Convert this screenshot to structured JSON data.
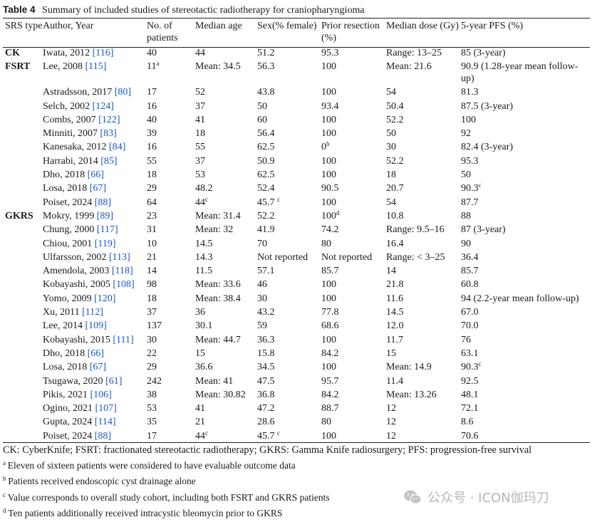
{
  "table": {
    "label": "Table 4",
    "title": "Summary of included studies of stereotactic radiotherapy for craniopharyngioma",
    "headers": [
      "SRS type",
      "Author, Year",
      "No. of patients",
      "Median age",
      "Sex(% female)",
      "Prior resec­tion (%)",
      "Median dose (Gy)",
      "5-year PFS (%)"
    ],
    "rows": [
      {
        "type": "CK",
        "author": "Iwata, 2012",
        "ref": "[116]",
        "n": "40",
        "nsup": "",
        "age": "44",
        "agesup": "",
        "sex": "51.2",
        "sexsup": "",
        "prior": "95.3",
        "priorsup": "",
        "dose": "Range: 13–25",
        "pfs": "85 (3-year)",
        "pfssup": ""
      },
      {
        "type": "FSRT",
        "author": "Lee, 2008",
        "ref": "[115]",
        "n": "11",
        "nsup": "a",
        "age": "Mean: 34.5",
        "agesup": "",
        "sex": "56.3",
        "sexsup": "",
        "prior": "100",
        "priorsup": "",
        "dose": "Mean: 21.6",
        "pfs": "90.9 (1.28-year mean follow-up)",
        "pfssup": ""
      },
      {
        "type": "",
        "author": "Astradsson, 2017",
        "ref": "[80]",
        "n": "17",
        "nsup": "",
        "age": "52",
        "agesup": "",
        "sex": "43.8",
        "sexsup": "",
        "prior": "100",
        "priorsup": "",
        "dose": "54",
        "pfs": "81.3",
        "pfssup": ""
      },
      {
        "type": "",
        "author": "Selch, 2002",
        "ref": "[124]",
        "n": "16",
        "nsup": "",
        "age": "37",
        "agesup": "",
        "sex": "50",
        "sexsup": "",
        "prior": "93.4",
        "priorsup": "",
        "dose": "50.4",
        "pfs": "87.5 (3-year)",
        "pfssup": ""
      },
      {
        "type": "",
        "author": "Combs, 2007",
        "ref": "[122]",
        "n": "40",
        "nsup": "",
        "age": "41",
        "agesup": "",
        "sex": "60",
        "sexsup": "",
        "prior": "100",
        "priorsup": "",
        "dose": "52.2",
        "pfs": "100",
        "pfssup": ""
      },
      {
        "type": "",
        "author": "Minniti, 2007",
        "ref": "[83]",
        "n": "39",
        "nsup": "",
        "age": "18",
        "agesup": "",
        "sex": "56.4",
        "sexsup": "",
        "prior": "100",
        "priorsup": "",
        "dose": "50",
        "pfs": "92",
        "pfssup": ""
      },
      {
        "type": "",
        "author": "Kanesaka, 2012",
        "ref": "[84]",
        "n": "16",
        "nsup": "",
        "age": "55",
        "agesup": "",
        "sex": "62.5",
        "sexsup": "",
        "prior": "0",
        "priorsup": "b",
        "dose": "30",
        "pfs": "82.4 (3-year)",
        "pfssup": ""
      },
      {
        "type": "",
        "author": "Harrabi, 2014",
        "ref": "[85]",
        "n": "55",
        "nsup": "",
        "age": "37",
        "agesup": "",
        "sex": "50.9",
        "sexsup": "",
        "prior": "100",
        "priorsup": "",
        "dose": "52.2",
        "pfs": "95.3",
        "pfssup": ""
      },
      {
        "type": "",
        "author": "Dho, 2018",
        "ref": "[66]",
        "n": "18",
        "nsup": "",
        "age": "53",
        "agesup": "",
        "sex": "62.5",
        "sexsup": "",
        "prior": "100",
        "priorsup": "",
        "dose": "18",
        "pfs": "50",
        "pfssup": ""
      },
      {
        "type": "",
        "author": "Losa, 2018",
        "ref": "[67]",
        "n": "29",
        "nsup": "",
        "age": "48.2",
        "agesup": "",
        "sex": "52.4",
        "sexsup": "",
        "prior": "90.5",
        "priorsup": "",
        "dose": "20.7",
        "pfs": "90.3",
        "pfssup": "c"
      },
      {
        "type": "",
        "author": "Poiset, 2024",
        "ref": "[88]",
        "n": "64",
        "nsup": "",
        "age": "44",
        "agesup": "c",
        "sex": "45.7",
        "sexsup": "c",
        "prior": "100",
        "priorsup": "",
        "dose": "54",
        "pfs": "87.7",
        "pfssup": ""
      },
      {
        "type": "GKRS",
        "author": "Mokry, 1999",
        "ref": "[89]",
        "n": "23",
        "nsup": "",
        "age": "Mean: 31.4",
        "agesup": "",
        "sex": "52.2",
        "sexsup": "",
        "prior": "100",
        "priorsup": "d",
        "dose": "10.8",
        "pfs": "88",
        "pfssup": ""
      },
      {
        "type": "",
        "author": "Chung, 2000",
        "ref": "[117]",
        "n": "31",
        "nsup": "",
        "age": "Mean: 32",
        "agesup": "",
        "sex": "41.9",
        "sexsup": "",
        "prior": "74.2",
        "priorsup": "",
        "dose": "Range: 9.5–16",
        "pfs": "87 (3-year)",
        "pfssup": ""
      },
      {
        "type": "",
        "author": "Chiou, 2001",
        "ref": "[119]",
        "n": "10",
        "nsup": "",
        "age": "14.5",
        "agesup": "",
        "sex": "70",
        "sexsup": "",
        "prior": "80",
        "priorsup": "",
        "dose": "16.4",
        "pfs": "90",
        "pfssup": ""
      },
      {
        "type": "",
        "author": "Ulfarsson, 2002",
        "ref": "[113]",
        "n": "21",
        "nsup": "",
        "age": "14.3",
        "agesup": "",
        "sex": "Not reported",
        "sexsup": "",
        "prior": "Not reported",
        "priorsup": "",
        "dose": "Range: < 3–25",
        "pfs": "36.4",
        "pfssup": ""
      },
      {
        "type": "",
        "author": "Amendola, 2003",
        "ref": "[118]",
        "n": "14",
        "nsup": "",
        "age": "11.5",
        "agesup": "",
        "sex": "57.1",
        "sexsup": "",
        "prior": "85.7",
        "priorsup": "",
        "dose": "14",
        "pfs": "85.7",
        "pfssup": ""
      },
      {
        "type": "",
        "author": "Kobayashi, 2005",
        "ref": "[108]",
        "n": "98",
        "nsup": "",
        "age": "Mean: 33.6",
        "agesup": "",
        "sex": "46",
        "sexsup": "",
        "prior": "100",
        "priorsup": "",
        "dose": "21.8",
        "pfs": "60.8",
        "pfssup": ""
      },
      {
        "type": "",
        "author": "Yomo, 2009",
        "ref": "[120]",
        "n": "18",
        "nsup": "",
        "age": "Mean: 38.4",
        "agesup": "",
        "sex": "30",
        "sexsup": "",
        "prior": "100",
        "priorsup": "",
        "dose": "11.6",
        "pfs": "94 (2.2-year mean follow-up)",
        "pfssup": ""
      },
      {
        "type": "",
        "author": "Xu, 2011",
        "ref": "[112]",
        "n": "37",
        "nsup": "",
        "age": "36",
        "agesup": "",
        "sex": "43.2",
        "sexsup": "",
        "prior": "77.8",
        "priorsup": "",
        "dose": "14.5",
        "pfs": "67.0",
        "pfssup": ""
      },
      {
        "type": "",
        "author": "Lee, 2014",
        "ref": "[109]",
        "n": "137",
        "nsup": "",
        "age": "30.1",
        "agesup": "",
        "sex": "59",
        "sexsup": "",
        "prior": "68.6",
        "priorsup": "",
        "dose": "12.0",
        "pfs": "70.0",
        "pfssup": ""
      },
      {
        "type": "",
        "author": "Kobayashi, 2015",
        "ref": "[111]",
        "n": "30",
        "nsup": "",
        "age": "Mean: 44.7",
        "agesup": "",
        "sex": "36.3",
        "sexsup": "",
        "prior": "100",
        "priorsup": "",
        "dose": "11.7",
        "pfs": "76",
        "pfssup": ""
      },
      {
        "type": "",
        "author": "Dho, 2018",
        "ref": "[66]",
        "n": "22",
        "nsup": "",
        "age": "15",
        "agesup": "",
        "sex": "15.8",
        "sexsup": "",
        "prior": "84.2",
        "priorsup": "",
        "dose": "15",
        "pfs": "63.1",
        "pfssup": ""
      },
      {
        "type": "",
        "author": "Losa, 2018",
        "ref": "[67]",
        "n": "29",
        "nsup": "",
        "age": "36.6",
        "agesup": "",
        "sex": "34.5",
        "sexsup": "",
        "prior": "100",
        "priorsup": "",
        "dose": "Mean: 14.9",
        "pfs": "90.3",
        "pfssup": "c"
      },
      {
        "type": "",
        "author": "Tsugawa, 2020",
        "ref": "[61]",
        "n": "242",
        "nsup": "",
        "age": "Mean: 41",
        "agesup": "",
        "sex": "47.5",
        "sexsup": "",
        "prior": "95.7",
        "priorsup": "",
        "dose": "11.4",
        "pfs": "92.5",
        "pfssup": ""
      },
      {
        "type": "",
        "author": "Pikis, 2021",
        "ref": "[106]",
        "n": "38",
        "nsup": "",
        "age": "Mean: 30.82",
        "agesup": "",
        "sex": "36.8",
        "sexsup": "",
        "prior": "84.2",
        "priorsup": "",
        "dose": "Mean: 13.26",
        "pfs": "48.1",
        "pfssup": ""
      },
      {
        "type": "",
        "author": "Ogino, 2021",
        "ref": "[107]",
        "n": "53",
        "nsup": "",
        "age": "41",
        "agesup": "",
        "sex": "47.2",
        "sexsup": "",
        "prior": "88.7",
        "priorsup": "",
        "dose": "12",
        "pfs": "72.1",
        "pfssup": ""
      },
      {
        "type": "",
        "author": "Gupta, 2024",
        "ref": "[114]",
        "n": "35",
        "nsup": "",
        "age": "21",
        "agesup": "",
        "sex": "28.6",
        "sexsup": "",
        "prior": "80",
        "priorsup": "",
        "dose": "12",
        "pfs": "8.6",
        "pfssup": ""
      },
      {
        "type": "",
        "author": "Poiset, 2024",
        "ref": "[88]",
        "n": "17",
        "nsup": "",
        "age": "44",
        "agesup": "c",
        "sex": "45.7",
        "sexsup": "c",
        "prior": "100",
        "priorsup": "",
        "dose": "12",
        "pfs": "70.6",
        "pfssup": ""
      }
    ]
  },
  "footnotes": {
    "abbrev": "CK: CyberKnife; FSRT: fractionated stereotactic radiotherapy; GKRS: Gamma Knife radiosurgery; PFS: progression-free survival",
    "a_mark": "a",
    "a": "Eleven of sixteen patients were considered to have evaluable outcome data",
    "b_mark": "b",
    "b": "Patients received endoscopic cyst drainage alone",
    "c_mark": "c",
    "c": "Value corresponds to overall study cohort, including both FSRT and GKRS patients",
    "d_mark": "d",
    "d": "Ten patients additionally received intracystic bleomycin prior to GKRS"
  },
  "watermark": {
    "text": "公众号 · ICON伽玛刀",
    "icon": "wechat-icon"
  }
}
